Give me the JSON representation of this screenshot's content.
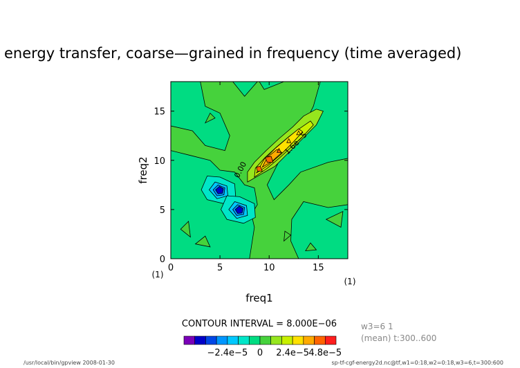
{
  "chart_data": {
    "type": "heatmap",
    "title": "energy transfer, coarse—grained in frequency (time averaged)",
    "xlabel": "freq1",
    "ylabel": "freq2",
    "x_unit": "(1)",
    "y_unit": "(1)",
    "xlim": [
      0,
      18
    ],
    "ylim": [
      0,
      18
    ],
    "x_ticks": [
      "0",
      "5",
      "10",
      "15"
    ],
    "y_ticks": [
      "0",
      "5",
      "10",
      "15"
    ],
    "contour_interval": "CONTOUR INTERVAL = 8.000E−06",
    "contour_labels": [
      "0.00",
      "1.6e−5"
    ],
    "colorbar": {
      "levels": [
        -5.6e-05,
        -4.8e-05,
        -4e-05,
        -3.2e-05,
        -2.4e-05,
        -1.6e-05,
        -8e-06,
        0.0,
        8e-06,
        1.6e-05,
        2.4e-05,
        3.2e-05,
        4e-05,
        4.8e-05,
        5.6e-05
      ],
      "tick_labels": [
        "−2.4e−5",
        "0",
        "2.4e−5",
        "4.8e−5"
      ],
      "colors": [
        "#7a00b8",
        "#0000c8",
        "#0046e6",
        "#0096ff",
        "#00c8ff",
        "#00e6c8",
        "#00dc82",
        "#46d23c",
        "#96e61e",
        "#c8f000",
        "#ffe100",
        "#ffaa00",
        "#ff6400",
        "#ff1e1e"
      ]
    },
    "features": [
      {
        "kind": "ridge",
        "from": [
          8,
          8
        ],
        "to": [
          15,
          15
        ],
        "max": 4e-05,
        "note": "positive transfer along the diagonal"
      },
      {
        "kind": "trough",
        "at": [
          5,
          7
        ],
        "min": -4.8e-05
      },
      {
        "kind": "trough",
        "at": [
          7,
          5
        ],
        "min": -4.8e-05
      }
    ]
  },
  "side_info": {
    "line1": "w3=6   1",
    "line2": "(mean)  t:300..600"
  },
  "footer": {
    "left": "/usr/local/bin/gpview   2008-01-30",
    "right": "sp-tf-cgf-energy2d.nc@tf,w1=0:18,w2=0:18,w3=6,t=300:600"
  }
}
